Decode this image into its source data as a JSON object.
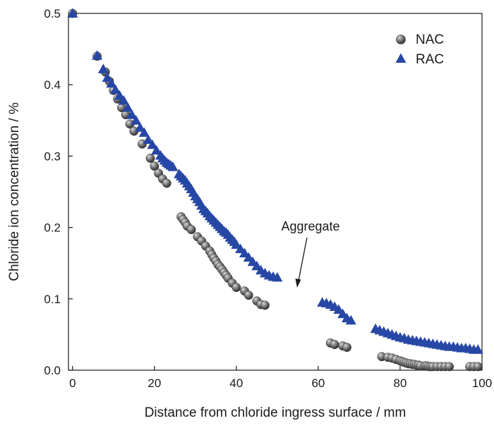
{
  "chart_data": {
    "type": "scatter",
    "xlabel": "Distance from chloride ingress surface / mm",
    "ylabel": "Chloride ion concentration / %",
    "xlim": [
      -1,
      100
    ],
    "ylim": [
      0,
      0.5
    ],
    "xticks": [
      0,
      20,
      40,
      60,
      80,
      100
    ],
    "yticks": [
      0.0,
      0.1,
      0.2,
      0.3,
      0.4,
      0.5
    ],
    "xtick_labels": [
      "0",
      "20",
      "40",
      "60",
      "80",
      "100"
    ],
    "ytick_labels": [
      "0.0",
      "0.1",
      "0.2",
      "0.3",
      "0.4",
      "0.5"
    ],
    "grid": false,
    "legend_position": "top-right",
    "annotation": {
      "text": "Aggregate",
      "x": 56,
      "y": 0.118
    },
    "series": [
      {
        "name": "NAC",
        "marker": "circle",
        "color": "#555555",
        "x": [
          0,
          6,
          8,
          9,
          10,
          11,
          12,
          13,
          14,
          15,
          17,
          19,
          20,
          21,
          22,
          23,
          26.5,
          27,
          27.5,
          28,
          29,
          30.5,
          31.5,
          32.5,
          33.5,
          34,
          34.5,
          35,
          35.5,
          36,
          36.5,
          37,
          37.5,
          38,
          39,
          40,
          42,
          43,
          45,
          46,
          47,
          63,
          64,
          66,
          67,
          75.5,
          77,
          78,
          79,
          80,
          80.5,
          81,
          81.5,
          82,
          82.5,
          83,
          83.5,
          84,
          84.5,
          85,
          86,
          86.5,
          87,
          87.5,
          88,
          89,
          90,
          91,
          92,
          97,
          98,
          99
        ],
        "y": [
          0.5,
          0.44,
          0.418,
          0.405,
          0.392,
          0.38,
          0.368,
          0.358,
          0.345,
          0.335,
          0.317,
          0.297,
          0.286,
          0.276,
          0.268,
          0.262,
          0.215,
          0.211,
          0.207,
          0.202,
          0.197,
          0.187,
          0.181,
          0.174,
          0.167,
          0.162,
          0.157,
          0.153,
          0.148,
          0.145,
          0.141,
          0.137,
          0.133,
          0.129,
          0.122,
          0.116,
          0.111,
          0.105,
          0.097,
          0.092,
          0.091,
          0.038,
          0.036,
          0.034,
          0.032,
          0.019,
          0.018,
          0.017,
          0.015,
          0.013,
          0.012,
          0.011,
          0.01,
          0.009,
          0.009,
          0.008,
          0.008,
          0.007,
          0.007,
          0.006,
          0.006,
          0.006,
          0.005,
          0.005,
          0.005,
          0.005,
          0.005,
          0.005,
          0.005,
          0.005,
          0.005,
          0.005
        ]
      },
      {
        "name": "RAC",
        "marker": "triangle",
        "color": "#2747a5",
        "x": [
          0,
          6,
          7.5,
          8.5,
          9.5,
          10.5,
          11.5,
          12.5,
          13.5,
          14.5,
          15.5,
          16.5,
          17.5,
          18.5,
          19.5,
          20.5,
          21.5,
          22,
          22.5,
          23,
          23.5,
          24,
          24.5,
          26,
          26.5,
          27,
          27.5,
          28,
          28.5,
          29,
          29.5,
          30,
          30.5,
          31,
          31.5,
          32,
          32.5,
          33,
          33.5,
          34,
          34.5,
          35,
          35.5,
          36,
          36.5,
          37,
          37.5,
          38,
          38.5,
          39,
          39.5,
          40,
          41,
          42,
          43,
          44,
          45,
          46,
          47,
          48,
          49,
          50,
          61,
          62,
          63,
          64,
          65,
          66,
          67,
          68,
          74,
          75,
          76,
          77,
          78,
          79,
          80,
          81,
          82,
          83,
          84,
          85,
          86,
          87,
          88,
          89,
          90,
          91,
          92,
          93,
          94,
          95,
          96,
          97,
          98,
          99
        ],
        "y": [
          0.5,
          0.441,
          0.422,
          0.41,
          0.402,
          0.393,
          0.385,
          0.378,
          0.368,
          0.358,
          0.35,
          0.34,
          0.333,
          0.323,
          0.316,
          0.308,
          0.301,
          0.297,
          0.294,
          0.291,
          0.289,
          0.287,
          0.285,
          0.275,
          0.272,
          0.269,
          0.266,
          0.262,
          0.258,
          0.254,
          0.249,
          0.244,
          0.24,
          0.236,
          0.231,
          0.226,
          0.223,
          0.22,
          0.216,
          0.213,
          0.21,
          0.207,
          0.204,
          0.201,
          0.198,
          0.195,
          0.193,
          0.19,
          0.186,
          0.183,
          0.18,
          0.176,
          0.17,
          0.164,
          0.158,
          0.152,
          0.146,
          0.14,
          0.136,
          0.133,
          0.131,
          0.13,
          0.095,
          0.094,
          0.092,
          0.089,
          0.085,
          0.079,
          0.073,
          0.07,
          0.058,
          0.056,
          0.054,
          0.052,
          0.05,
          0.048,
          0.046,
          0.045,
          0.043,
          0.042,
          0.041,
          0.04,
          0.039,
          0.038,
          0.037,
          0.036,
          0.035,
          0.034,
          0.033,
          0.033,
          0.032,
          0.031,
          0.031,
          0.03,
          0.029,
          0.029
        ]
      }
    ]
  }
}
